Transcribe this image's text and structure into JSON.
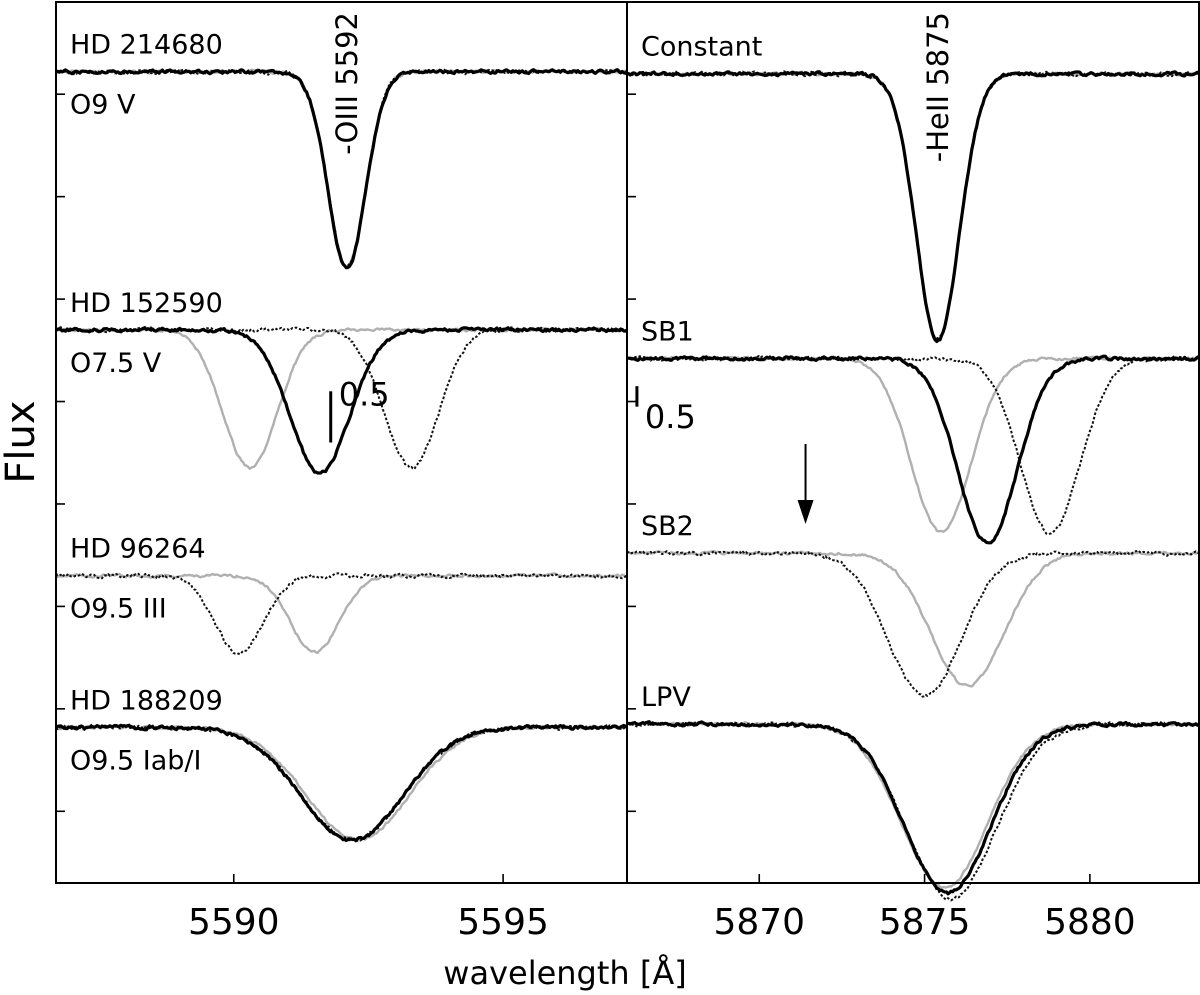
{
  "figure": {
    "xlabel": "wavelength [Å]",
    "ylabel": "Flux"
  },
  "chart_data": [
    {
      "type": "line",
      "panel": "left",
      "xlim": [
        5586.7,
        5597.3
      ],
      "ylim": [
        0,
        8.6
      ],
      "xticks": [
        5590,
        5595
      ],
      "xtick_labels": [
        "5590",
        "5595"
      ],
      "line_label": "-OIII 5592",
      "line_label_x": 5592.1,
      "scale_bar_label": "0.5",
      "scale_bar": {
        "x": 5591.8,
        "y0": 4.3,
        "y1": 4.8
      },
      "spectra": [
        {
          "star": "HD 214680",
          "sptype": "O9 V",
          "continuum": 7.92,
          "profiles": [
            {
              "style": "gray",
              "center": 5592.1,
              "depth": 1.9,
              "width": 0.35
            },
            {
              "style": "dot",
              "center": 5592.1,
              "depth": 1.9,
              "width": 0.35
            },
            {
              "style": "solid",
              "center": 5592.1,
              "depth": 1.92,
              "width": 0.35
            }
          ]
        },
        {
          "star": "HD 152590",
          "sptype": "O7.5 V",
          "continuum": 5.4,
          "profiles": [
            {
              "style": "gray",
              "center": 5590.3,
              "depth": 1.35,
              "width": 0.5
            },
            {
              "style": "dot",
              "center": 5593.3,
              "depth": 1.35,
              "width": 0.5
            },
            {
              "style": "solid",
              "center": 5591.6,
              "depth": 1.4,
              "width": 0.55
            }
          ]
        },
        {
          "star": "HD 96264",
          "sptype": "O9.5 III",
          "continuum": 3.0,
          "profiles": [
            {
              "style": "gray",
              "center": 5591.5,
              "depth": 0.75,
              "width": 0.45
            },
            {
              "style": "dot",
              "center": 5590.1,
              "depth": 0.75,
              "width": 0.45
            }
          ]
        },
        {
          "star": "HD 188209",
          "sptype": "O9.5 Iab/I",
          "continuum": 1.52,
          "profiles": [
            {
              "style": "gray",
              "center": 5592.3,
              "depth": 1.1,
              "width": 0.95
            },
            {
              "style": "dot",
              "center": 5592.2,
              "depth": 1.1,
              "width": 0.95
            },
            {
              "style": "solid",
              "center": 5592.2,
              "depth": 1.1,
              "width": 0.95
            }
          ]
        }
      ]
    },
    {
      "type": "line",
      "panel": "right",
      "xlim": [
        5866.0,
        5883.3
      ],
      "ylim": [
        0,
        8.6
      ],
      "xticks": [
        5870,
        5875,
        5880
      ],
      "xtick_labels": [
        "5870",
        "5875",
        "5880"
      ],
      "line_label": "-HeII 5875",
      "line_label_x": 5875.4,
      "scale_bar_label": "0.5",
      "scale_bar": {
        "x": 5866.3,
        "y0": 4.65,
        "y1": 4.85
      },
      "arrow_x": 5871.4,
      "spectra": [
        {
          "star": "Constant",
          "continuum": 7.9,
          "profiles": [
            {
              "style": "gray",
              "center": 5875.4,
              "depth": 2.6,
              "width": 0.65
            },
            {
              "style": "dot",
              "center": 5875.4,
              "depth": 2.6,
              "width": 0.65
            },
            {
              "style": "solid",
              "center": 5875.4,
              "depth": 2.6,
              "width": 0.65
            }
          ]
        },
        {
          "star": "SB1",
          "continuum": 5.12,
          "profiles": [
            {
              "style": "gray",
              "center": 5875.5,
              "depth": 1.7,
              "width": 0.9
            },
            {
              "style": "dot",
              "center": 5878.8,
              "depth": 1.7,
              "width": 0.9
            },
            {
              "style": "solid",
              "center": 5876.9,
              "depth": 1.8,
              "width": 0.9
            }
          ]
        },
        {
          "star": "SB2",
          "continuum": 3.22,
          "profiles": [
            {
              "style": "gray",
              "center": 5876.3,
              "depth": 1.3,
              "width": 1.1
            },
            {
              "style": "dot",
              "center": 5875.0,
              "depth": 1.4,
              "width": 1.1
            }
          ]
        },
        {
          "star": "LPV",
          "continuum": 1.55,
          "profiles": [
            {
              "style": "gray",
              "center": 5875.6,
              "depth": 1.6,
              "width": 1.3
            },
            {
              "style": "dot",
              "center": 5875.8,
              "depth": 1.7,
              "width": 1.35
            },
            {
              "style": "solid",
              "center": 5875.7,
              "depth": 1.65,
              "width": 1.3
            }
          ]
        }
      ]
    }
  ]
}
